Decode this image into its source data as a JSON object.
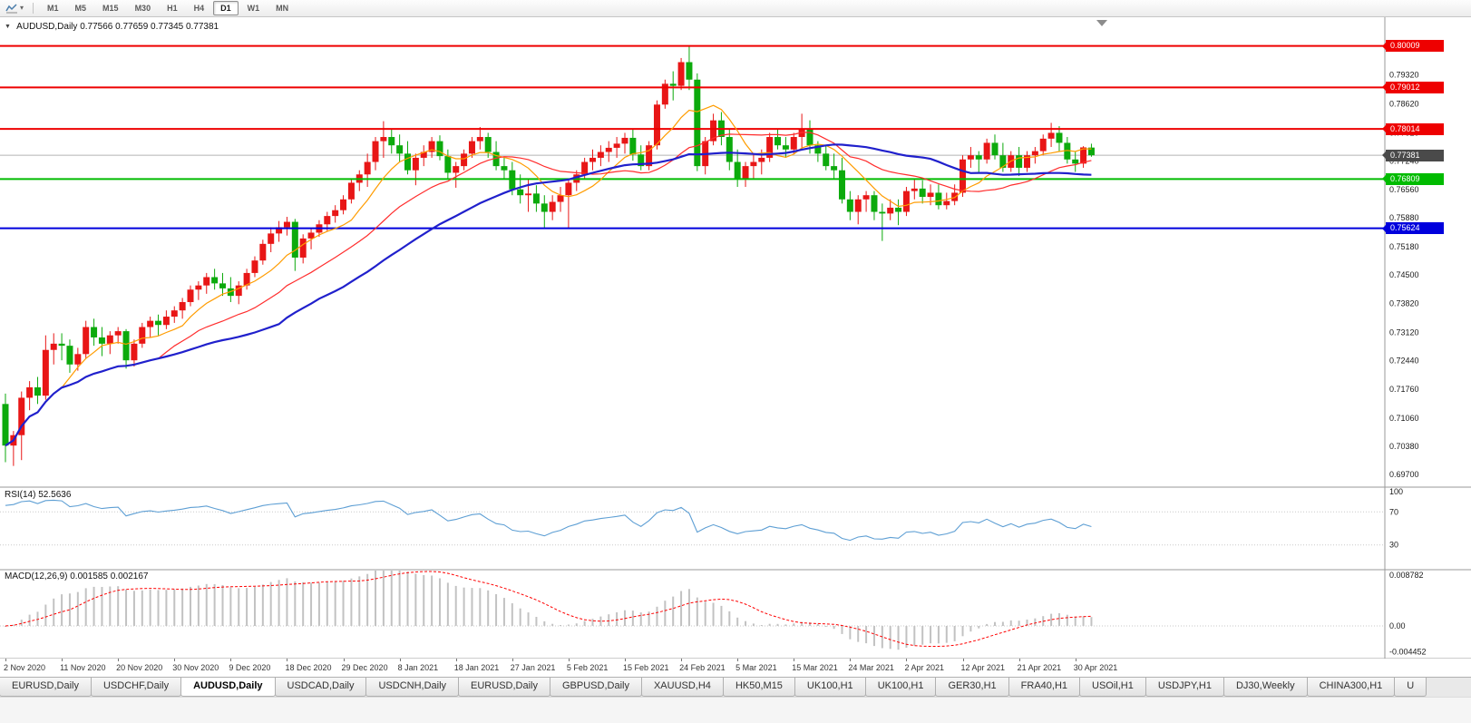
{
  "toolbar": {
    "caret_glyph": "▾",
    "timeframes": [
      {
        "label": "M1",
        "active": false
      },
      {
        "label": "M5",
        "active": false
      },
      {
        "label": "M15",
        "active": false
      },
      {
        "label": "M30",
        "active": false
      },
      {
        "label": "H1",
        "active": false
      },
      {
        "label": "H4",
        "active": false
      },
      {
        "label": "D1",
        "active": true
      },
      {
        "label": "W1",
        "active": false
      },
      {
        "label": "MN",
        "active": false
      }
    ]
  },
  "chart": {
    "collapse_glyph": "▼",
    "symbol": "AUDUSD,Daily",
    "ohlc_text": "0.77566 0.77659 0.77345 0.77381"
  },
  "chart_data": {
    "type": "candlestick",
    "symbol": "AUDUSD",
    "timeframe": "Daily",
    "ylim": [
      0.694,
      0.807
    ],
    "bull_color": "#e81616",
    "bear_color": "#0caa0c",
    "y_ticks": [
      "0.79320",
      "0.78620",
      "0.77920",
      "0.77240",
      "0.76560",
      "0.75880",
      "0.75180",
      "0.74500",
      "0.73820",
      "0.73120",
      "0.72440",
      "0.71760",
      "0.71060",
      "0.70380",
      "0.69700"
    ],
    "x_labels": [
      "2 Nov 2020",
      "11 Nov 2020",
      "20 Nov 2020",
      "30 Nov 2020",
      "9 Dec 2020",
      "18 Dec 2020",
      "29 Dec 2020",
      "8 Jan 2021",
      "18 Jan 2021",
      "27 Jan 2021",
      "5 Feb 2021",
      "15 Feb 2021",
      "24 Feb 2021",
      "5 Mar 2021",
      "15 Mar 2021",
      "24 Mar 2021",
      "2 Apr 2021",
      "12 Apr 2021",
      "21 Apr 2021",
      "30 Apr 2021"
    ],
    "label_every": 7,
    "levels": [
      {
        "price": 0.80009,
        "label": "0.80009",
        "color": "#ee0000"
      },
      {
        "price": 0.79012,
        "label": "0.79012",
        "color": "#ee0000"
      },
      {
        "price": 0.78014,
        "label": "0.78014",
        "color": "#ee0000"
      },
      {
        "price": 0.76809,
        "label": "0.76809",
        "color": "#00bb00"
      },
      {
        "price": 0.75624,
        "label": "0.75624",
        "color": "#0000dd"
      }
    ],
    "current_price": {
      "price": 0.77381,
      "label": "0.77381",
      "color": "#4a4a4a"
    },
    "moving_averages": [
      {
        "period": 8,
        "color": "#ff9c00",
        "width": 1.2
      },
      {
        "period": 20,
        "color": "#ff2d2d",
        "width": 1.2
      },
      {
        "period": 35,
        "color": "#2020cc",
        "width": 2.2
      }
    ],
    "candles": [
      [
        0.714,
        0.7165,
        0.7,
        0.704
      ],
      [
        0.704,
        0.7075,
        0.6991,
        0.7065
      ],
      [
        0.7065,
        0.717,
        0.7005,
        0.7155
      ],
      [
        0.7155,
        0.7195,
        0.7125,
        0.718
      ],
      [
        0.718,
        0.7205,
        0.714,
        0.716
      ],
      [
        0.716,
        0.7305,
        0.715,
        0.727
      ],
      [
        0.727,
        0.731,
        0.7235,
        0.7285
      ],
      [
        0.7285,
        0.731,
        0.7245,
        0.728
      ],
      [
        0.728,
        0.7295,
        0.7215,
        0.7235
      ],
      [
        0.7235,
        0.7275,
        0.722,
        0.726
      ],
      [
        0.726,
        0.734,
        0.725,
        0.7325
      ],
      [
        0.7325,
        0.7345,
        0.728,
        0.73
      ],
      [
        0.73,
        0.7325,
        0.7255,
        0.7285
      ],
      [
        0.7285,
        0.7315,
        0.726,
        0.7305
      ],
      [
        0.7305,
        0.7325,
        0.7285,
        0.7315
      ],
      [
        0.7315,
        0.732,
        0.7225,
        0.7245
      ],
      [
        0.7245,
        0.7295,
        0.723,
        0.7285
      ],
      [
        0.7285,
        0.7335,
        0.7275,
        0.7325
      ],
      [
        0.7325,
        0.735,
        0.73,
        0.734
      ],
      [
        0.734,
        0.7355,
        0.7305,
        0.733
      ],
      [
        0.733,
        0.7365,
        0.732,
        0.735
      ],
      [
        0.735,
        0.7375,
        0.7335,
        0.7365
      ],
      [
        0.7365,
        0.7395,
        0.7345,
        0.7385
      ],
      [
        0.7385,
        0.7425,
        0.7375,
        0.7415
      ],
      [
        0.7415,
        0.7435,
        0.739,
        0.7425
      ],
      [
        0.7425,
        0.7455,
        0.7405,
        0.7445
      ],
      [
        0.7445,
        0.7465,
        0.7415,
        0.743
      ],
      [
        0.743,
        0.7455,
        0.74,
        0.7418
      ],
      [
        0.7418,
        0.7445,
        0.7385,
        0.74
      ],
      [
        0.74,
        0.7435,
        0.738,
        0.7425
      ],
      [
        0.7425,
        0.7465,
        0.7415,
        0.7455
      ],
      [
        0.7455,
        0.7495,
        0.7445,
        0.7485
      ],
      [
        0.7485,
        0.7535,
        0.7475,
        0.7525
      ],
      [
        0.7525,
        0.7565,
        0.7505,
        0.755
      ],
      [
        0.755,
        0.758,
        0.753,
        0.7565
      ],
      [
        0.7565,
        0.759,
        0.7545,
        0.7578
      ],
      [
        0.7578,
        0.7585,
        0.746,
        0.7492
      ],
      [
        0.7492,
        0.7548,
        0.7478,
        0.7538
      ],
      [
        0.7538,
        0.7562,
        0.7512,
        0.7552
      ],
      [
        0.7552,
        0.7582,
        0.7542,
        0.7572
      ],
      [
        0.7572,
        0.7602,
        0.7556,
        0.7592
      ],
      [
        0.7592,
        0.7618,
        0.7576,
        0.7606
      ],
      [
        0.7606,
        0.7642,
        0.7596,
        0.7632
      ],
      [
        0.7632,
        0.7682,
        0.7622,
        0.7672
      ],
      [
        0.7672,
        0.7702,
        0.7652,
        0.7692
      ],
      [
        0.7692,
        0.7742,
        0.7662,
        0.7722
      ],
      [
        0.7722,
        0.7782,
        0.7702,
        0.7772
      ],
      [
        0.7772,
        0.782,
        0.7732,
        0.7782
      ],
      [
        0.7782,
        0.7802,
        0.7742,
        0.7762
      ],
      [
        0.7762,
        0.7788,
        0.7722,
        0.7742
      ],
      [
        0.7742,
        0.7772,
        0.7692,
        0.7702
      ],
      [
        0.7702,
        0.7742,
        0.7666,
        0.7732
      ],
      [
        0.7732,
        0.7762,
        0.7712,
        0.7746
      ],
      [
        0.7746,
        0.7782,
        0.7732,
        0.7772
      ],
      [
        0.7772,
        0.7786,
        0.7726,
        0.7736
      ],
      [
        0.7736,
        0.7752,
        0.7682,
        0.7696
      ],
      [
        0.7696,
        0.7722,
        0.766,
        0.7712
      ],
      [
        0.7712,
        0.7752,
        0.7702,
        0.7742
      ],
      [
        0.7742,
        0.7782,
        0.7732,
        0.7772
      ],
      [
        0.7772,
        0.7806,
        0.7752,
        0.7782
      ],
      [
        0.7782,
        0.7792,
        0.7732,
        0.7746
      ],
      [
        0.7746,
        0.7772,
        0.7702,
        0.7712
      ],
      [
        0.7712,
        0.7732,
        0.7682,
        0.7702
      ],
      [
        0.7702,
        0.7722,
        0.7642,
        0.7656
      ],
      [
        0.7656,
        0.7692,
        0.7622,
        0.7642
      ],
      [
        0.7642,
        0.7682,
        0.7602,
        0.7646
      ],
      [
        0.7646,
        0.7666,
        0.7602,
        0.7622
      ],
      [
        0.7622,
        0.7642,
        0.7564,
        0.7602
      ],
      [
        0.7602,
        0.7642,
        0.7582,
        0.7626
      ],
      [
        0.7626,
        0.7662,
        0.7602,
        0.7642
      ],
      [
        0.7642,
        0.7682,
        0.7562,
        0.7672
      ],
      [
        0.7672,
        0.7702,
        0.7652,
        0.7692
      ],
      [
        0.7692,
        0.7732,
        0.7682,
        0.7722
      ],
      [
        0.7722,
        0.7752,
        0.7702,
        0.7732
      ],
      [
        0.7732,
        0.7762,
        0.7712,
        0.7746
      ],
      [
        0.7746,
        0.7772,
        0.7722,
        0.7756
      ],
      [
        0.7756,
        0.7782,
        0.7732,
        0.7766
      ],
      [
        0.7766,
        0.7792,
        0.7742,
        0.778
      ],
      [
        0.778,
        0.78,
        0.7725,
        0.774
      ],
      [
        0.774,
        0.7762,
        0.7702,
        0.7712
      ],
      [
        0.7712,
        0.7772,
        0.7702,
        0.7762
      ],
      [
        0.7762,
        0.787,
        0.7752,
        0.786
      ],
      [
        0.786,
        0.792,
        0.785,
        0.791
      ],
      [
        0.791,
        0.794,
        0.787,
        0.7905
      ],
      [
        0.7905,
        0.7972,
        0.7895,
        0.7962
      ],
      [
        0.7962,
        0.8001,
        0.7895,
        0.792
      ],
      [
        0.792,
        0.7935,
        0.77,
        0.7712
      ],
      [
        0.7712,
        0.7782,
        0.7692,
        0.7772
      ],
      [
        0.7772,
        0.7838,
        0.7762,
        0.7822
      ],
      [
        0.7822,
        0.7842,
        0.7762,
        0.7782
      ],
      [
        0.7782,
        0.7802,
        0.7702,
        0.7722
      ],
      [
        0.7722,
        0.7752,
        0.7662,
        0.7682
      ],
      [
        0.7682,
        0.7722,
        0.7662,
        0.7712
      ],
      [
        0.7712,
        0.7742,
        0.7682,
        0.7722
      ],
      [
        0.7722,
        0.7752,
        0.7692,
        0.7732
      ],
      [
        0.7732,
        0.7792,
        0.7722,
        0.7782
      ],
      [
        0.7782,
        0.7802,
        0.7752,
        0.7762
      ],
      [
        0.7762,
        0.7782,
        0.7732,
        0.7752
      ],
      [
        0.7752,
        0.7792,
        0.7742,
        0.7782
      ],
      [
        0.7782,
        0.7838,
        0.7752,
        0.7802
      ],
      [
        0.7802,
        0.7822,
        0.7742,
        0.7762
      ],
      [
        0.7762,
        0.7772,
        0.7722,
        0.7742
      ],
      [
        0.7742,
        0.7762,
        0.7702,
        0.7712
      ],
      [
        0.7712,
        0.7742,
        0.7682,
        0.7702
      ],
      [
        0.7702,
        0.7732,
        0.7622,
        0.7632
      ],
      [
        0.7632,
        0.7652,
        0.7582,
        0.7602
      ],
      [
        0.7602,
        0.7642,
        0.7572,
        0.7632
      ],
      [
        0.7632,
        0.7652,
        0.7602,
        0.7642
      ],
      [
        0.7642,
        0.7652,
        0.7582,
        0.7602
      ],
      [
        0.7602,
        0.7622,
        0.7532,
        0.7598
      ],
      [
        0.7598,
        0.7632,
        0.7582,
        0.7612
      ],
      [
        0.7612,
        0.7632,
        0.757,
        0.7602
      ],
      [
        0.7602,
        0.7662,
        0.7592,
        0.7652
      ],
      [
        0.7652,
        0.7682,
        0.7632,
        0.7658
      ],
      [
        0.7658,
        0.7678,
        0.7622,
        0.7638
      ],
      [
        0.7638,
        0.7668,
        0.7618,
        0.7648
      ],
      [
        0.7648,
        0.7668,
        0.7608,
        0.7618
      ],
      [
        0.7618,
        0.7648,
        0.7608,
        0.7628
      ],
      [
        0.7628,
        0.7668,
        0.7618,
        0.7648
      ],
      [
        0.7648,
        0.7738,
        0.7638,
        0.7728
      ],
      [
        0.7728,
        0.7758,
        0.7708,
        0.7738
      ],
      [
        0.7738,
        0.7748,
        0.7698,
        0.7728
      ],
      [
        0.7728,
        0.7778,
        0.7718,
        0.7768
      ],
      [
        0.7768,
        0.7788,
        0.7728,
        0.7738
      ],
      [
        0.7738,
        0.7768,
        0.7698,
        0.7708
      ],
      [
        0.7708,
        0.7748,
        0.7698,
        0.7738
      ],
      [
        0.7738,
        0.7758,
        0.7688,
        0.7708
      ],
      [
        0.7708,
        0.7748,
        0.7698,
        0.7738
      ],
      [
        0.7738,
        0.7758,
        0.7718,
        0.7748
      ],
      [
        0.7748,
        0.7788,
        0.7738,
        0.7778
      ],
      [
        0.7778,
        0.7816,
        0.7758,
        0.7792
      ],
      [
        0.7792,
        0.7808,
        0.7746,
        0.7768
      ],
      [
        0.7768,
        0.7782,
        0.7718,
        0.7728
      ],
      [
        0.7728,
        0.7748,
        0.7698,
        0.7718
      ],
      [
        0.7718,
        0.776,
        0.7708,
        0.7757
      ],
      [
        0.77566,
        0.77659,
        0.77345,
        0.77381
      ]
    ],
    "rsi": {
      "name": "RSI(14)",
      "value": "52.5636",
      "period": 14,
      "levels": [
        100,
        70,
        30
      ],
      "ylim": [
        0,
        100
      ],
      "color": "#5e9fd4"
    },
    "macd": {
      "name": "MACD(12,26,9)",
      "values": "0.001585 0.002167",
      "fast": 12,
      "slow": 26,
      "signal": 9,
      "ylim": [
        -0.00565,
        0.00972
      ],
      "ticks": [
        0.008782,
        0,
        -0.004452
      ],
      "tick_labels": [
        "0.008782",
        "0.00",
        "-0.004452"
      ],
      "hist_color": "#c2c2c2",
      "signal_color": "#ff0000"
    }
  },
  "tabs": [
    {
      "label": "EURUSD,Daily",
      "active": false
    },
    {
      "label": "USDCHF,Daily",
      "active": false
    },
    {
      "label": "AUDUSD,Daily",
      "active": true
    },
    {
      "label": "USDCAD,Daily",
      "active": false
    },
    {
      "label": "USDCNH,Daily",
      "active": false
    },
    {
      "label": "EURUSD,Daily",
      "active": false
    },
    {
      "label": "GBPUSD,Daily",
      "active": false
    },
    {
      "label": "XAUUSD,H4",
      "active": false
    },
    {
      "label": "HK50,M15",
      "active": false
    },
    {
      "label": "UK100,H1",
      "active": false
    },
    {
      "label": "UK100,H1",
      "active": false
    },
    {
      "label": "GER30,H1",
      "active": false
    },
    {
      "label": "FRA40,H1",
      "active": false
    },
    {
      "label": "USOil,H1",
      "active": false
    },
    {
      "label": "USDJPY,H1",
      "active": false
    },
    {
      "label": "DJ30,Weekly",
      "active": false
    },
    {
      "label": "CHINA300,H1",
      "active": false
    },
    {
      "label": "U",
      "active": false
    }
  ]
}
